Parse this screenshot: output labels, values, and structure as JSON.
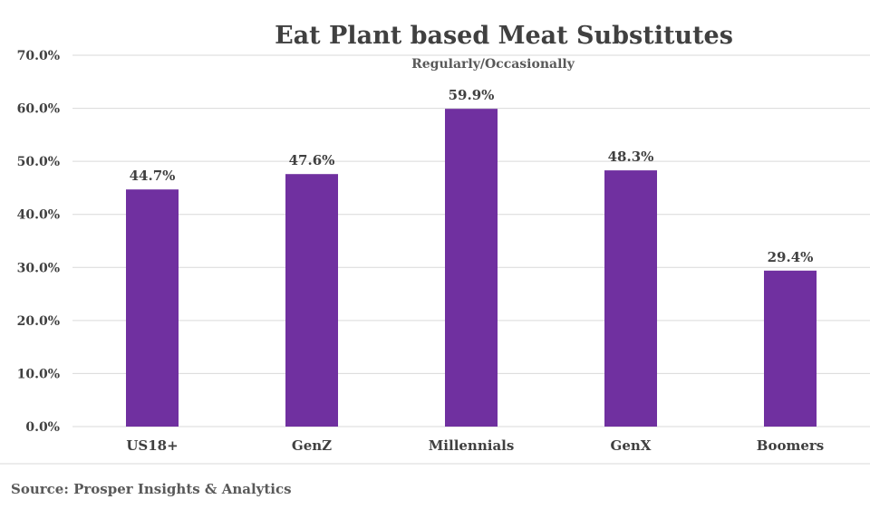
{
  "chart_data": {
    "type": "bar",
    "title": "Eat Plant based Meat Substitutes",
    "subtitle": "Regularly/Occasionally",
    "categories": [
      "US18+",
      "GenZ",
      "Millennials",
      "GenX",
      "Boomers"
    ],
    "values": [
      44.7,
      47.6,
      59.9,
      48.3,
      29.4
    ],
    "data_labels": [
      "44.7%",
      "47.6%",
      "59.9%",
      "48.3%",
      "29.4%"
    ],
    "y_ticks": [
      0,
      10,
      20,
      30,
      40,
      50,
      60,
      70
    ],
    "y_tick_labels": [
      "0.0%",
      "10.0%",
      "20.0%",
      "30.0%",
      "40.0%",
      "50.0%",
      "60.0%",
      "70.0%"
    ],
    "ylim": [
      0,
      70
    ],
    "xlabel": "",
    "ylabel": "",
    "grid": true,
    "bar_color": "#7030a0",
    "source": "Source: Prosper Insights & Analytics"
  }
}
